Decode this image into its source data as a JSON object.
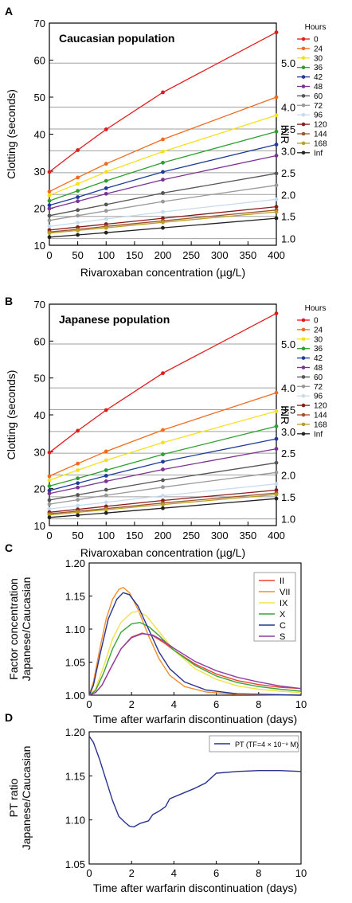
{
  "panels": {
    "A": {
      "letter": "A",
      "title": "Caucasian population"
    },
    "B": {
      "letter": "B",
      "title": "Japanese population"
    },
    "C": {
      "letter": "C"
    },
    "D": {
      "letter": "D"
    }
  },
  "chart_data": [
    {
      "type": "line",
      "panel": "A",
      "title": "Caucasian population",
      "xlabel": "Rivaroxaban concentration (µg/L)",
      "ylabel": "Clotting (seconds)",
      "y2label": "INR",
      "xlim": [
        0,
        400
      ],
      "ylim": [
        10,
        70
      ],
      "xticks": [
        0,
        50,
        100,
        150,
        200,
        250,
        300,
        350,
        400
      ],
      "yticks": [
        10,
        20,
        30,
        40,
        50,
        60,
        70
      ],
      "inr_ticks": [
        {
          "label": "5.0",
          "y": 59.2
        },
        {
          "label": "4.0",
          "y": 47.3
        },
        {
          "label": "3.5",
          "y": 41.4
        },
        {
          "label": "3.0",
          "y": 35.5
        },
        {
          "label": "2.5",
          "y": 29.6
        },
        {
          "label": "2.0",
          "y": 23.7
        },
        {
          "label": "1.5",
          "y": 17.8
        },
        {
          "label": "1.0",
          "y": 11.8
        }
      ],
      "legend_title": "Hours",
      "legend_position": "right",
      "x": [
        0,
        50,
        100,
        200,
        400
      ],
      "series": [
        {
          "name": "0",
          "color": "#e31a1c",
          "values": [
            29.8,
            35.7,
            41.3,
            51.3,
            67.5
          ]
        },
        {
          "name": "24",
          "color": "#f26b1d",
          "values": [
            24.5,
            28.3,
            32.0,
            38.6,
            50.0
          ]
        },
        {
          "name": "30",
          "color": "#f5e11a",
          "values": [
            23.5,
            26.6,
            29.8,
            35.3,
            45.1
          ]
        },
        {
          "name": "36",
          "color": "#2ca02c",
          "values": [
            22.0,
            24.7,
            27.4,
            32.3,
            40.7
          ]
        },
        {
          "name": "42",
          "color": "#1f3a9a",
          "values": [
            20.8,
            23.0,
            25.4,
            29.8,
            37.2
          ]
        },
        {
          "name": "48",
          "color": "#7b3294",
          "values": [
            19.9,
            21.9,
            23.9,
            27.7,
            34.2
          ]
        },
        {
          "name": "60",
          "color": "#555555",
          "values": [
            18.0,
            19.5,
            21.0,
            24.1,
            29.4
          ]
        },
        {
          "name": "72",
          "color": "#999999",
          "values": [
            16.7,
            18.0,
            19.3,
            21.8,
            26.2
          ]
        },
        {
          "name": "96",
          "color": "#c6dbef",
          "values": [
            15.1,
            16.1,
            17.1,
            19.0,
            22.4
          ]
        },
        {
          "name": "120",
          "color": "#8b1a1a",
          "values": [
            14.1,
            14.9,
            15.7,
            17.3,
            20.4
          ]
        },
        {
          "name": "144",
          "color": "#a0522d",
          "values": [
            13.6,
            14.3,
            15.1,
            16.6,
            19.5
          ]
        },
        {
          "name": "168",
          "color": "#b8a020",
          "values": [
            13.3,
            14.0,
            14.7,
            16.2,
            19.0
          ]
        },
        {
          "name": "Inf",
          "color": "#222222",
          "values": [
            12.2,
            12.8,
            13.4,
            14.7,
            17.3
          ]
        }
      ]
    },
    {
      "type": "line",
      "panel": "B",
      "title": "Japanese population",
      "xlabel": "Rivaroxaban concentration (µg/L)",
      "ylabel": "Clotting (seconds)",
      "y2label": "INR",
      "xlim": [
        0,
        400
      ],
      "ylim": [
        10,
        70
      ],
      "xticks": [
        0,
        50,
        100,
        150,
        200,
        250,
        300,
        350,
        400
      ],
      "yticks": [
        10,
        20,
        30,
        40,
        50,
        60,
        70
      ],
      "inr_ticks": [
        {
          "label": "5.0",
          "y": 59.2
        },
        {
          "label": "4.0",
          "y": 47.3
        },
        {
          "label": "3.5",
          "y": 41.4
        },
        {
          "label": "3.0",
          "y": 35.5
        },
        {
          "label": "2.5",
          "y": 29.6
        },
        {
          "label": "2.0",
          "y": 23.7
        },
        {
          "label": "1.5",
          "y": 17.8
        },
        {
          "label": "1.0",
          "y": 11.8
        }
      ],
      "legend_title": "Hours",
      "legend_position": "right",
      "x": [
        0,
        50,
        100,
        200,
        400
      ],
      "series": [
        {
          "name": "0",
          "color": "#e31a1c",
          "values": [
            29.8,
            35.7,
            41.3,
            51.3,
            67.5
          ]
        },
        {
          "name": "24",
          "color": "#f26b1d",
          "values": [
            23.4,
            26.8,
            30.1,
            35.9,
            46.0
          ]
        },
        {
          "name": "30",
          "color": "#f5e11a",
          "values": [
            22.3,
            25.0,
            27.7,
            32.5,
            41.0
          ]
        },
        {
          "name": "36",
          "color": "#2ca02c",
          "values": [
            20.7,
            22.8,
            25.0,
            29.3,
            36.9
          ]
        },
        {
          "name": "42",
          "color": "#1f3a9a",
          "values": [
            19.5,
            21.5,
            23.5,
            27.3,
            33.5
          ]
        },
        {
          "name": "48",
          "color": "#7b3294",
          "values": [
            18.7,
            20.3,
            22.0,
            25.2,
            30.8
          ]
        },
        {
          "name": "60",
          "color": "#555555",
          "values": [
            16.9,
            18.3,
            19.7,
            22.3,
            27.0
          ]
        },
        {
          "name": "72",
          "color": "#999999",
          "values": [
            15.8,
            17.0,
            18.2,
            20.4,
            24.4
          ]
        },
        {
          "name": "96",
          "color": "#c6dbef",
          "values": [
            14.5,
            15.4,
            16.3,
            18.1,
            21.3
          ]
        },
        {
          "name": "120",
          "color": "#8b1a1a",
          "values": [
            13.6,
            14.4,
            15.2,
            16.8,
            19.6
          ]
        },
        {
          "name": "144",
          "color": "#a0522d",
          "values": [
            13.2,
            13.9,
            14.6,
            16.1,
            18.8
          ]
        },
        {
          "name": "168",
          "color": "#b8a020",
          "values": [
            12.9,
            13.6,
            14.3,
            15.7,
            18.4
          ]
        },
        {
          "name": "Inf",
          "color": "#222222",
          "values": [
            12.2,
            12.8,
            13.4,
            14.7,
            17.3
          ]
        }
      ]
    },
    {
      "type": "line",
      "panel": "C",
      "xlabel": "Time after warfarin discontinuation (days)",
      "ylabel": "Factor concentration\nJapanese/Caucasian",
      "xlim": [
        0,
        10
      ],
      "ylim": [
        1.0,
        1.2
      ],
      "xticks": [
        0,
        2,
        4,
        6,
        8,
        10
      ],
      "yticks": [
        1.0,
        1.05,
        1.1,
        1.15,
        1.2
      ],
      "ytick_labels": [
        "1.00",
        "1.05",
        "1.10",
        "1.15",
        "1.20"
      ],
      "legend_position": "top-right",
      "series": [
        {
          "name": "II",
          "color": "#e8452c",
          "points": [
            [
              0,
              1.0
            ],
            [
              0.3,
              1.004
            ],
            [
              0.6,
              1.015
            ],
            [
              1.0,
              1.04
            ],
            [
              1.5,
              1.07
            ],
            [
              2.0,
              1.088
            ],
            [
              2.5,
              1.094
            ],
            [
              3.0,
              1.09
            ],
            [
              3.5,
              1.08
            ],
            [
              4.0,
              1.068
            ],
            [
              5.0,
              1.047
            ],
            [
              6.0,
              1.032
            ],
            [
              7.0,
              1.022
            ],
            [
              8.0,
              1.016
            ],
            [
              9.0,
              1.012
            ],
            [
              10.0,
              1.01
            ]
          ]
        },
        {
          "name": "VII",
          "color": "#f28e2b",
          "points": [
            [
              0,
              1.0
            ],
            [
              0.2,
              1.02
            ],
            [
              0.5,
              1.07
            ],
            [
              0.8,
              1.115
            ],
            [
              1.1,
              1.145
            ],
            [
              1.4,
              1.16
            ],
            [
              1.6,
              1.163
            ],
            [
              1.9,
              1.155
            ],
            [
              2.3,
              1.13
            ],
            [
              2.8,
              1.09
            ],
            [
              3.3,
              1.055
            ],
            [
              3.8,
              1.03
            ],
            [
              4.5,
              1.013
            ],
            [
              5.5,
              1.005
            ],
            [
              7.0,
              1.001
            ],
            [
              10.0,
              1.0
            ]
          ]
        },
        {
          "name": "IX",
          "color": "#f2e24a",
          "points": [
            [
              0,
              1.0
            ],
            [
              0.3,
              1.01
            ],
            [
              0.7,
              1.045
            ],
            [
              1.1,
              1.085
            ],
            [
              1.5,
              1.11
            ],
            [
              2.0,
              1.125
            ],
            [
              2.3,
              1.127
            ],
            [
              2.7,
              1.12
            ],
            [
              3.2,
              1.1
            ],
            [
              4.0,
              1.068
            ],
            [
              5.0,
              1.04
            ],
            [
              6.0,
              1.024
            ],
            [
              7.0,
              1.014
            ],
            [
              8.0,
              1.009
            ],
            [
              9.0,
              1.006
            ],
            [
              10.0,
              1.004
            ]
          ]
        },
        {
          "name": "X",
          "color": "#3aa635",
          "points": [
            [
              0,
              1.0
            ],
            [
              0.3,
              1.007
            ],
            [
              0.7,
              1.035
            ],
            [
              1.1,
              1.07
            ],
            [
              1.5,
              1.095
            ],
            [
              2.0,
              1.108
            ],
            [
              2.4,
              1.11
            ],
            [
              2.8,
              1.104
            ],
            [
              3.3,
              1.09
            ],
            [
              4.0,
              1.068
            ],
            [
              5.0,
              1.045
            ],
            [
              6.0,
              1.029
            ],
            [
              7.0,
              1.019
            ],
            [
              8.0,
              1.013
            ],
            [
              9.0,
              1.009
            ],
            [
              10.0,
              1.006
            ]
          ]
        },
        {
          "name": "C",
          "color": "#27338f",
          "points": [
            [
              0,
              1.0
            ],
            [
              0.2,
              1.015
            ],
            [
              0.5,
              1.06
            ],
            [
              0.9,
              1.115
            ],
            [
              1.3,
              1.145
            ],
            [
              1.6,
              1.155
            ],
            [
              1.9,
              1.152
            ],
            [
              2.3,
              1.135
            ],
            [
              2.8,
              1.1
            ],
            [
              3.3,
              1.065
            ],
            [
              3.8,
              1.04
            ],
            [
              4.5,
              1.02
            ],
            [
              5.5,
              1.008
            ],
            [
              7.0,
              1.002
            ],
            [
              10.0,
              1.0
            ]
          ]
        },
        {
          "name": "S",
          "color": "#8e3fa3",
          "points": [
            [
              0,
              1.0
            ],
            [
              0.3,
              1.004
            ],
            [
              0.6,
              1.015
            ],
            [
              1.0,
              1.04
            ],
            [
              1.5,
              1.07
            ],
            [
              2.0,
              1.087
            ],
            [
              2.5,
              1.093
            ],
            [
              3.0,
              1.091
            ],
            [
              3.5,
              1.082
            ],
            [
              4.0,
              1.071
            ],
            [
              5.0,
              1.051
            ],
            [
              6.0,
              1.037
            ],
            [
              7.0,
              1.027
            ],
            [
              8.0,
              1.02
            ],
            [
              9.0,
              1.014
            ],
            [
              10.0,
              1.01
            ]
          ]
        }
      ]
    },
    {
      "type": "line",
      "panel": "D",
      "xlabel": "Time after warfarin discontinuation (days)",
      "ylabel": "PT ratio\nJapanese/Caucasian",
      "xlim": [
        0,
        10
      ],
      "ylim": [
        1.05,
        1.2
      ],
      "xticks": [
        0,
        2,
        4,
        6,
        8,
        10
      ],
      "yticks": [
        1.05,
        1.1,
        1.15,
        1.2
      ],
      "ytick_labels": [
        "1.05",
        "1.10",
        "1.15",
        "1.20"
      ],
      "legend_position": "top-right",
      "series": [
        {
          "name": "PT (TF=4 × 10⁻⁹ M)",
          "color": "#27338f",
          "points": [
            [
              0,
              1.195
            ],
            [
              0.2,
              1.188
            ],
            [
              0.5,
              1.168
            ],
            [
              0.8,
              1.145
            ],
            [
              1.1,
              1.122
            ],
            [
              1.4,
              1.104
            ],
            [
              1.7,
              1.097
            ],
            [
              1.9,
              1.093
            ],
            [
              2.1,
              1.092
            ],
            [
              2.4,
              1.096
            ],
            [
              2.8,
              1.099
            ],
            [
              3.0,
              1.106
            ],
            [
              3.3,
              1.11
            ],
            [
              3.6,
              1.115
            ],
            [
              3.8,
              1.124
            ],
            [
              4.2,
              1.128
            ],
            [
              5.0,
              1.136
            ],
            [
              5.5,
              1.142
            ],
            [
              6.0,
              1.153
            ],
            [
              7.0,
              1.155
            ],
            [
              8.0,
              1.156
            ],
            [
              9.0,
              1.156
            ],
            [
              10.0,
              1.155
            ]
          ]
        }
      ]
    }
  ]
}
